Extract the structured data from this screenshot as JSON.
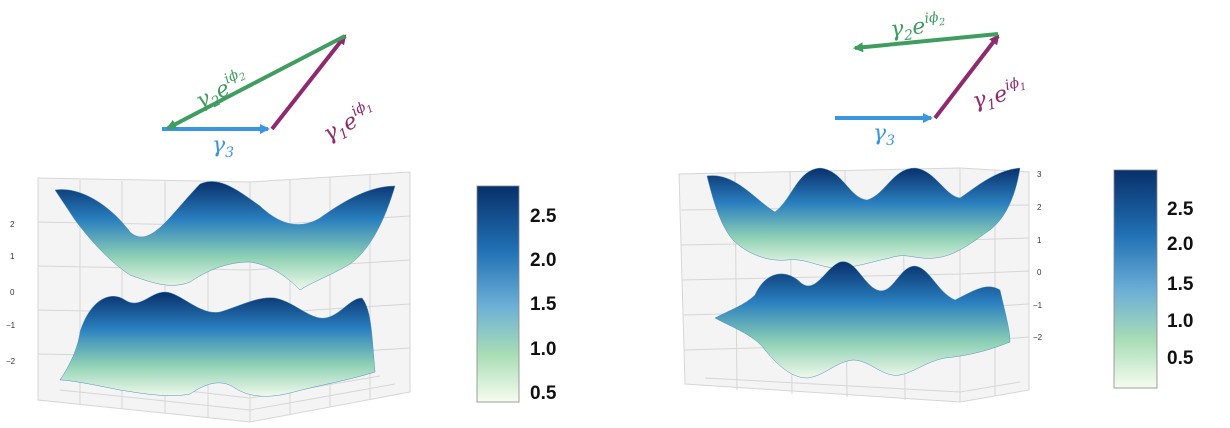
{
  "panels": [
    {
      "vectors": {
        "g1": {
          "base": "γ",
          "sub": "1",
          "exp": "e",
          "sup": "iϕ",
          "supsub": "1",
          "color": "#8e2a6e"
        },
        "g2": {
          "base": "γ",
          "sub": "2",
          "exp": "e",
          "sup": "iϕ",
          "supsub": "2",
          "color": "#3f9d5f"
        },
        "g3": {
          "base": "γ",
          "sub": "3",
          "color": "#3a96e0"
        }
      },
      "z_ticks": [
        "2",
        "1",
        "0",
        "−1",
        "−2"
      ],
      "colorbar": {
        "ticks": [
          "2.5",
          "2.0",
          "1.5",
          "1.0",
          "0.5"
        ],
        "colors": [
          "#08306b",
          "#2171b5",
          "#6baed6",
          "#a8ddb5",
          "#f7fcf0"
        ]
      }
    },
    {
      "vectors": {
        "g1": {
          "base": "γ",
          "sub": "1",
          "exp": "e",
          "sup": "iϕ",
          "supsub": "1",
          "color": "#8e2a6e"
        },
        "g2": {
          "base": "γ",
          "sub": "2",
          "exp": "e",
          "sup": "iϕ",
          "supsub": "2",
          "color": "#3f9d5f"
        },
        "g3": {
          "base": "γ",
          "sub": "3",
          "color": "#3a96e0"
        }
      },
      "z_ticks": [
        "3",
        "2",
        "1",
        "0",
        "−1",
        "−2"
      ],
      "colorbar": {
        "ticks": [
          "2.5",
          "2.0",
          "1.5",
          "1.0",
          "0.5"
        ],
        "colors": [
          "#08306b",
          "#2171b5",
          "#6baed6",
          "#a8ddb5",
          "#f7fcf0"
        ]
      }
    }
  ]
}
